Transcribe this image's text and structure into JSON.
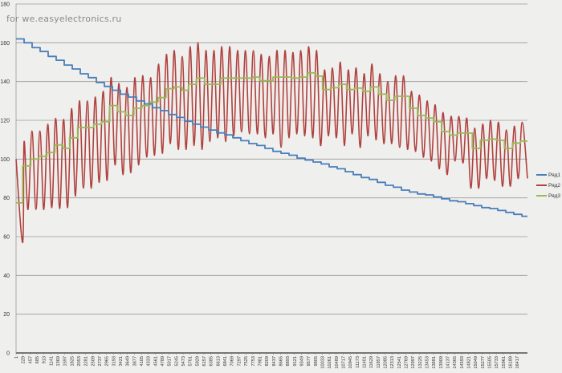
{
  "watermark": "for we.easyelectronics.ru",
  "chart_data": {
    "type": "line",
    "title": "",
    "xlabel": "",
    "ylabel": "",
    "ylim": [
      0,
      180
    ],
    "xlim": [
      1,
      16754
    ],
    "y_ticks": [
      0,
      20,
      40,
      60,
      80,
      100,
      120,
      140,
      160,
      180
    ],
    "x_tick_labels": [
      1,
      229,
      457,
      685,
      913,
      1141,
      1369,
      1597,
      1825,
      2053,
      2281,
      2509,
      2737,
      2965,
      3193,
      3421,
      3649,
      3877,
      4105,
      4333,
      4561,
      4789,
      5017,
      5245,
      5473,
      5701,
      5929,
      6157,
      6385,
      6613,
      6841,
      7069,
      7297,
      7525,
      7753,
      7981,
      8209,
      8437,
      8665,
      8893,
      9121,
      9349,
      9577,
      9805,
      10033,
      10261,
      10489,
      10717,
      10945,
      11173,
      11401,
      11629,
      11857,
      12085,
      12313,
      12541,
      12769,
      12997,
      13225,
      13453,
      13681,
      13909,
      14137,
      14365,
      14593,
      14821,
      15049,
      15277,
      15505,
      15733,
      15961,
      16189,
      16417
    ],
    "grid": true,
    "legend": "right",
    "series": [
      {
        "name": "Ряд1",
        "color": "#4a7ebb",
        "style": "step",
        "x": [
          1,
          264,
          527,
          790,
          1053,
          1316,
          1579,
          1842,
          2105,
          2368,
          2631,
          2894,
          3157,
          3420,
          3683,
          3946,
          4209,
          4472,
          4735,
          4998,
          5261,
          5524,
          5787,
          6050,
          6313,
          6576,
          6839,
          7102,
          7365,
          7628,
          7891,
          8154,
          8417,
          8680,
          8943,
          9206,
          9469,
          9732,
          9995,
          10258,
          10521,
          10784,
          11047,
          11310,
          11573,
          11836,
          12099,
          12362,
          12625,
          12888,
          13151,
          13414,
          13677,
          13940,
          14203,
          14466,
          14729,
          14992,
          15255,
          15518,
          15781,
          16044,
          16307,
          16570
        ],
        "y": [
          162,
          160,
          157.5,
          155.5,
          153,
          151,
          148.5,
          146.5,
          144,
          142,
          139.5,
          137.5,
          135.5,
          133.5,
          132,
          130,
          128.5,
          126.5,
          125,
          123,
          121.5,
          119.5,
          118,
          116.5,
          115,
          113.5,
          112.5,
          111,
          109.5,
          108,
          107,
          105.5,
          104,
          103,
          102,
          100.5,
          99.5,
          98.5,
          97.5,
          96,
          95,
          93.5,
          92,
          90.5,
          89.5,
          88,
          86.5,
          85.5,
          84,
          83,
          82,
          81.5,
          80.5,
          79.5,
          78.5,
          78,
          77,
          76,
          75,
          74.5,
          73.5,
          72.5,
          71.5,
          70.5
        ]
      },
      {
        "name": "Ряд2",
        "color": "#b0413e",
        "style": "smooth",
        "x": [
          1,
          219,
          264,
          394,
          523,
          653,
          782,
          912,
          1041,
          1171,
          1300,
          1430,
          1559,
          1689,
          1818,
          1948,
          2077,
          2207,
          2336,
          2466,
          2595,
          2725,
          2854,
          2984,
          3113,
          3243,
          3372,
          3502,
          3631,
          3761,
          3890,
          4020,
          4149,
          4279,
          4408,
          4538,
          4667,
          4797,
          4926,
          5056,
          5185,
          5315,
          5444,
          5574,
          5703,
          5833,
          5962,
          6092,
          6221,
          6351,
          6480,
          6610,
          6739,
          6869,
          6998,
          7128,
          7257,
          7387,
          7516,
          7646,
          7775,
          7905,
          8034,
          8164,
          8293,
          8423,
          8552,
          8682,
          8811,
          8941,
          9070,
          9200,
          9329,
          9459,
          9588,
          9718,
          9847,
          9977,
          10106,
          10236,
          10365,
          10495,
          10624,
          10754,
          10883,
          11013,
          11142,
          11272,
          11401,
          11531,
          11660,
          11790,
          11919,
          12049,
          12178,
          12308,
          12437,
          12567,
          12696,
          12826,
          12955,
          13085,
          13214,
          13344,
          13473,
          13603,
          13732,
          13862,
          13991,
          14121,
          14250,
          14380,
          14509,
          14639,
          14768,
          14898,
          15027,
          15157,
          15286,
          15416,
          15545,
          15675,
          15804,
          15934,
          16063,
          16193,
          16322,
          16452,
          16581,
          16754
        ],
        "y": [
          100,
          57,
          109,
          74,
          114.5,
          74,
          114.5,
          74,
          118,
          75,
          121,
          74.5,
          120.5,
          75,
          126,
          81,
          130,
          85,
          130,
          85,
          132,
          88,
          135,
          89,
          142,
          97,
          139,
          92,
          137,
          93,
          142,
          97,
          143,
          101,
          142,
          102,
          149,
          103,
          154,
          108,
          156,
          105,
          153,
          105,
          158,
          107,
          160,
          105,
          156,
          109,
          156,
          111,
          158,
          109,
          158,
          112,
          156,
          114,
          156,
          113,
          156,
          113,
          154,
          111,
          153,
          113,
          156,
          106,
          156,
          111,
          155,
          113,
          156,
          112,
          158,
          111,
          156,
          107,
          146,
          112,
          147,
          111,
          150,
          107,
          146,
          113,
          147,
          106,
          144,
          112,
          149,
          110,
          144,
          108,
          140,
          108,
          143,
          106,
          143,
          105,
          135,
          104,
          133,
          101,
          130,
          99,
          128,
          95,
          124,
          92,
          122,
          99,
          122,
          98,
          121,
          85,
          116,
          85,
          118,
          90,
          120,
          89,
          119,
          86,
          115,
          86,
          117,
          90,
          119,
          90
        ]
      },
      {
        "name": "Ряд3",
        "color": "#98b954",
        "style": "step",
        "x": [
          1,
          219,
          482,
          745,
          1008,
          1271,
          1534,
          1755,
          2018,
          2544,
          2807,
          3070,
          3333,
          3596,
          3859,
          4122,
          4385,
          4648,
          4911,
          5174,
          5437,
          5656,
          5919,
          6182,
          6708,
          7760,
          7978,
          8417,
          9030,
          9293,
          9556,
          9819,
          10039,
          10302,
          10565,
          10828,
          11091,
          11354,
          11617,
          11880,
          12143,
          12406,
          12888,
          13151,
          13414,
          13677,
          13940,
          14203,
          14466,
          14947,
          15210,
          15473,
          15736,
          15999,
          16262,
          16525
        ],
        "y": [
          77.4,
          96.5,
          100,
          101.4,
          103.4,
          107.3,
          105.5,
          111,
          116.3,
          118,
          119.3,
          127.6,
          124.4,
          122.5,
          126.2,
          127.6,
          129.4,
          131.7,
          136.3,
          137.2,
          135.5,
          138.6,
          141.8,
          138.6,
          141.8,
          142.3,
          140.4,
          142.3,
          141.8,
          142.3,
          144.5,
          142.8,
          135.9,
          136.8,
          138.6,
          135.9,
          136.6,
          135,
          137.2,
          133.5,
          130.3,
          132.4,
          126.2,
          122.5,
          121.2,
          119.3,
          114.2,
          112.4,
          113.4,
          105.5,
          109.7,
          110.3,
          109.7,
          105.5,
          108.3,
          109.3
        ]
      }
    ]
  }
}
